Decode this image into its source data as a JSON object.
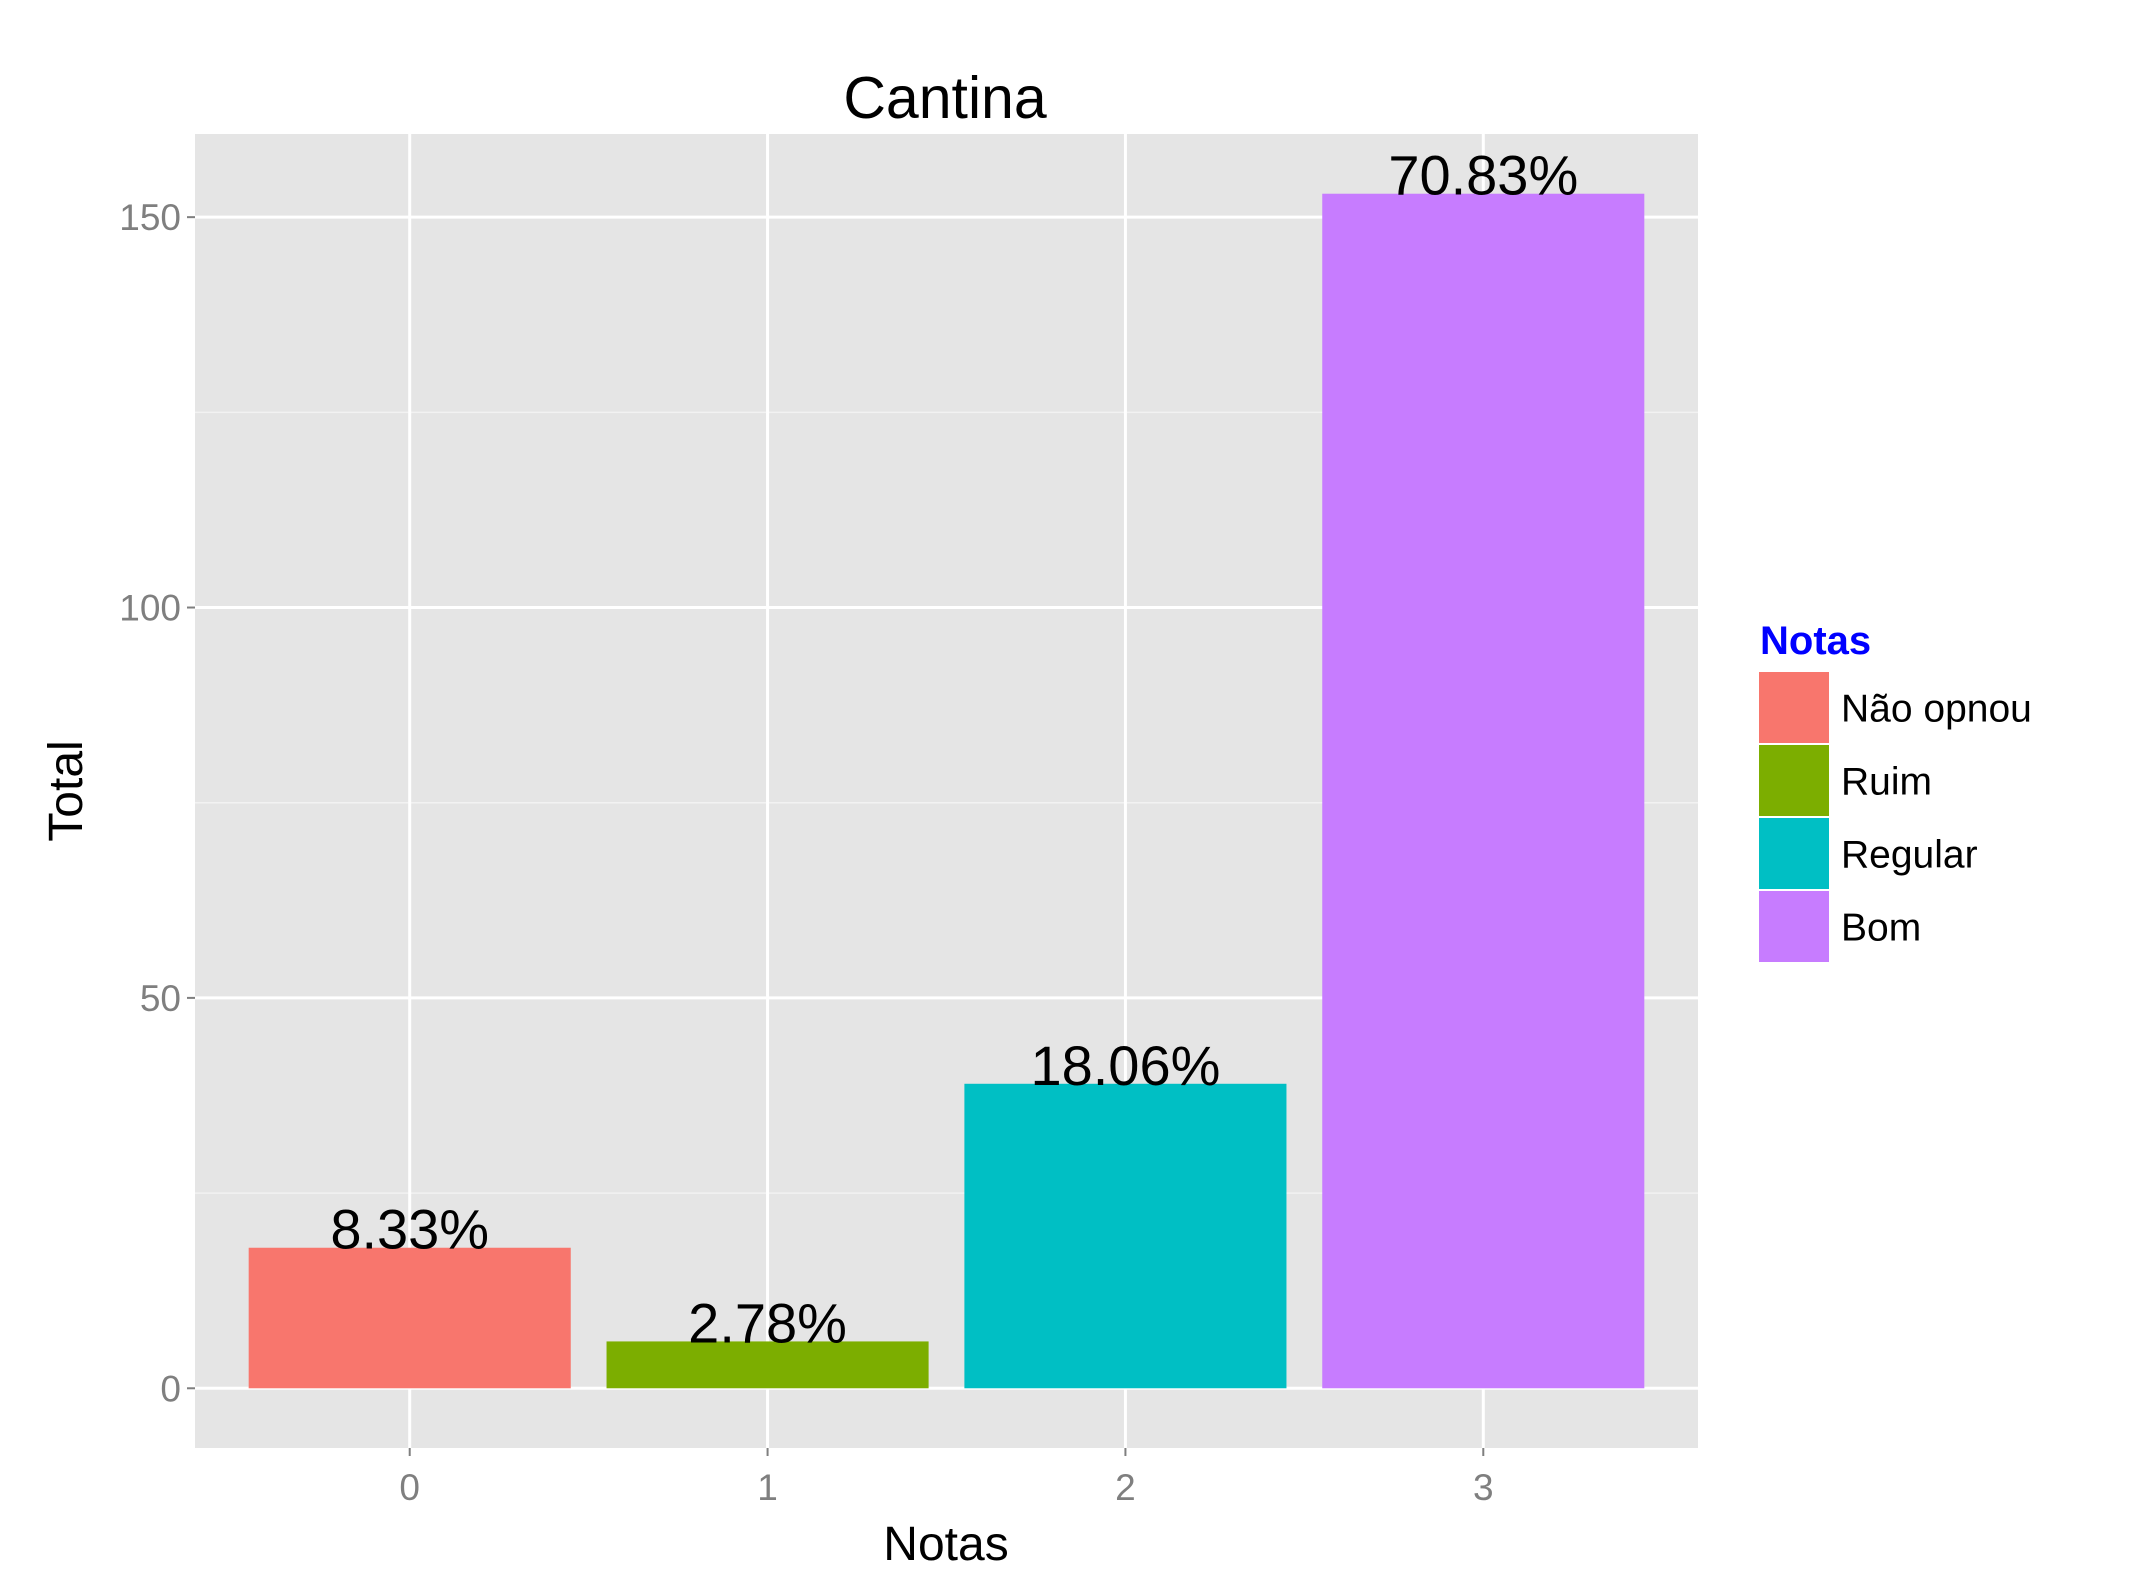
{
  "chart_data": {
    "type": "bar",
    "title": "Cantina",
    "xlabel": "Notas",
    "ylabel": "Total",
    "categories": [
      "0",
      "1",
      "2",
      "3"
    ],
    "values": [
      18,
      6,
      39,
      153
    ],
    "labels": [
      "8.33%",
      "2.78%",
      "18.06%",
      "70.83%"
    ],
    "colors": [
      "#F8766D",
      "#7CAE00",
      "#00BFC4",
      "#C77CFF"
    ],
    "ylim": [
      -7.65,
      160.65
    ],
    "yticks": [
      0,
      50,
      100,
      150
    ],
    "grid": true,
    "legend": {
      "title": "Notas",
      "title_color": "#0000FF",
      "position": "right",
      "entries": [
        "Não opnou",
        "Ruim",
        "Regular",
        "Bom"
      ]
    }
  }
}
